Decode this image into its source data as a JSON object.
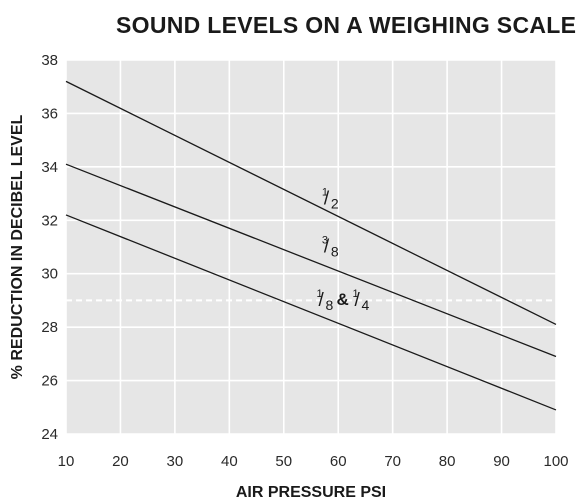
{
  "chart_data": {
    "type": "line",
    "title": "SOUND LEVELS ON A WEIGHING SCALE",
    "xlabel": "AIR PRESSURE PSI",
    "ylabel": "% REDUCTION IN DECIBEL LEVEL",
    "xlim": [
      10,
      100
    ],
    "ylim": [
      24,
      38
    ],
    "x_ticks": [
      10,
      20,
      30,
      40,
      50,
      60,
      70,
      80,
      90,
      100
    ],
    "y_ticks": [
      24,
      26,
      28,
      30,
      32,
      34,
      36,
      38
    ],
    "grid": true,
    "background_color": "#e6e6e6",
    "grid_color": "#ffffff",
    "line_color": "#1a1a1a",
    "reference_line": {
      "y": 29,
      "style": "dashed",
      "color": "#ffffff"
    },
    "series": [
      {
        "name": "1/2",
        "x": [
          10,
          100
        ],
        "y": [
          37.2,
          28.1
        ],
        "label": {
          "num": "1",
          "den": "2",
          "x": 57,
          "y": 32.7
        }
      },
      {
        "name": "3/8",
        "x": [
          10,
          100
        ],
        "y": [
          34.1,
          26.9
        ],
        "label": {
          "num": "3",
          "den": "8",
          "x": 57,
          "y": 30.9
        }
      },
      {
        "name": "1/8 & 1/4",
        "x": [
          10,
          100
        ],
        "y": [
          32.2,
          24.9
        ],
        "label": {
          "num": "1",
          "den": "8",
          "amp": "&",
          "num2": "1",
          "den2": "4",
          "x": 56,
          "y": 28.9
        }
      }
    ]
  }
}
